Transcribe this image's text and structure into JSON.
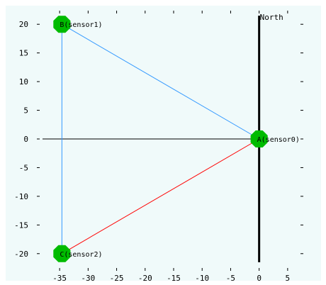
{
  "chart_data": {
    "type": "scatter",
    "title": "",
    "xlabel": "",
    "ylabel": "",
    "xlim": [
      -38,
      8
    ],
    "ylim": [
      -22.5,
      22.5
    ],
    "x_ticks": [
      -35,
      -30,
      -25,
      -20,
      -15,
      -10,
      -5,
      0,
      5
    ],
    "y_ticks": [
      20,
      15,
      10,
      5,
      0,
      -5,
      -10,
      -15,
      -20
    ],
    "grid": "dotted tick marks only",
    "points": [
      {
        "id": "A",
        "label": "A(sensor0)",
        "x": 0,
        "y": 0
      },
      {
        "id": "B",
        "label": "B(sensor1)",
        "x": -34.6,
        "y": 20
      },
      {
        "id": "C",
        "label": "C(sensor2)",
        "x": -34.6,
        "y": -20
      }
    ],
    "edges": [
      {
        "from": "B",
        "to": "A",
        "color": "#3399ff"
      },
      {
        "from": "B",
        "to": "C",
        "color": "#3399ff"
      },
      {
        "from": "C",
        "to": "A",
        "color": "#ff0000"
      }
    ],
    "north_label": "North"
  },
  "colors": {
    "plot_background": "#f0fafa",
    "marker": "#00bb00",
    "axis_zero_line": "#000000",
    "north_line": "#000000"
  }
}
